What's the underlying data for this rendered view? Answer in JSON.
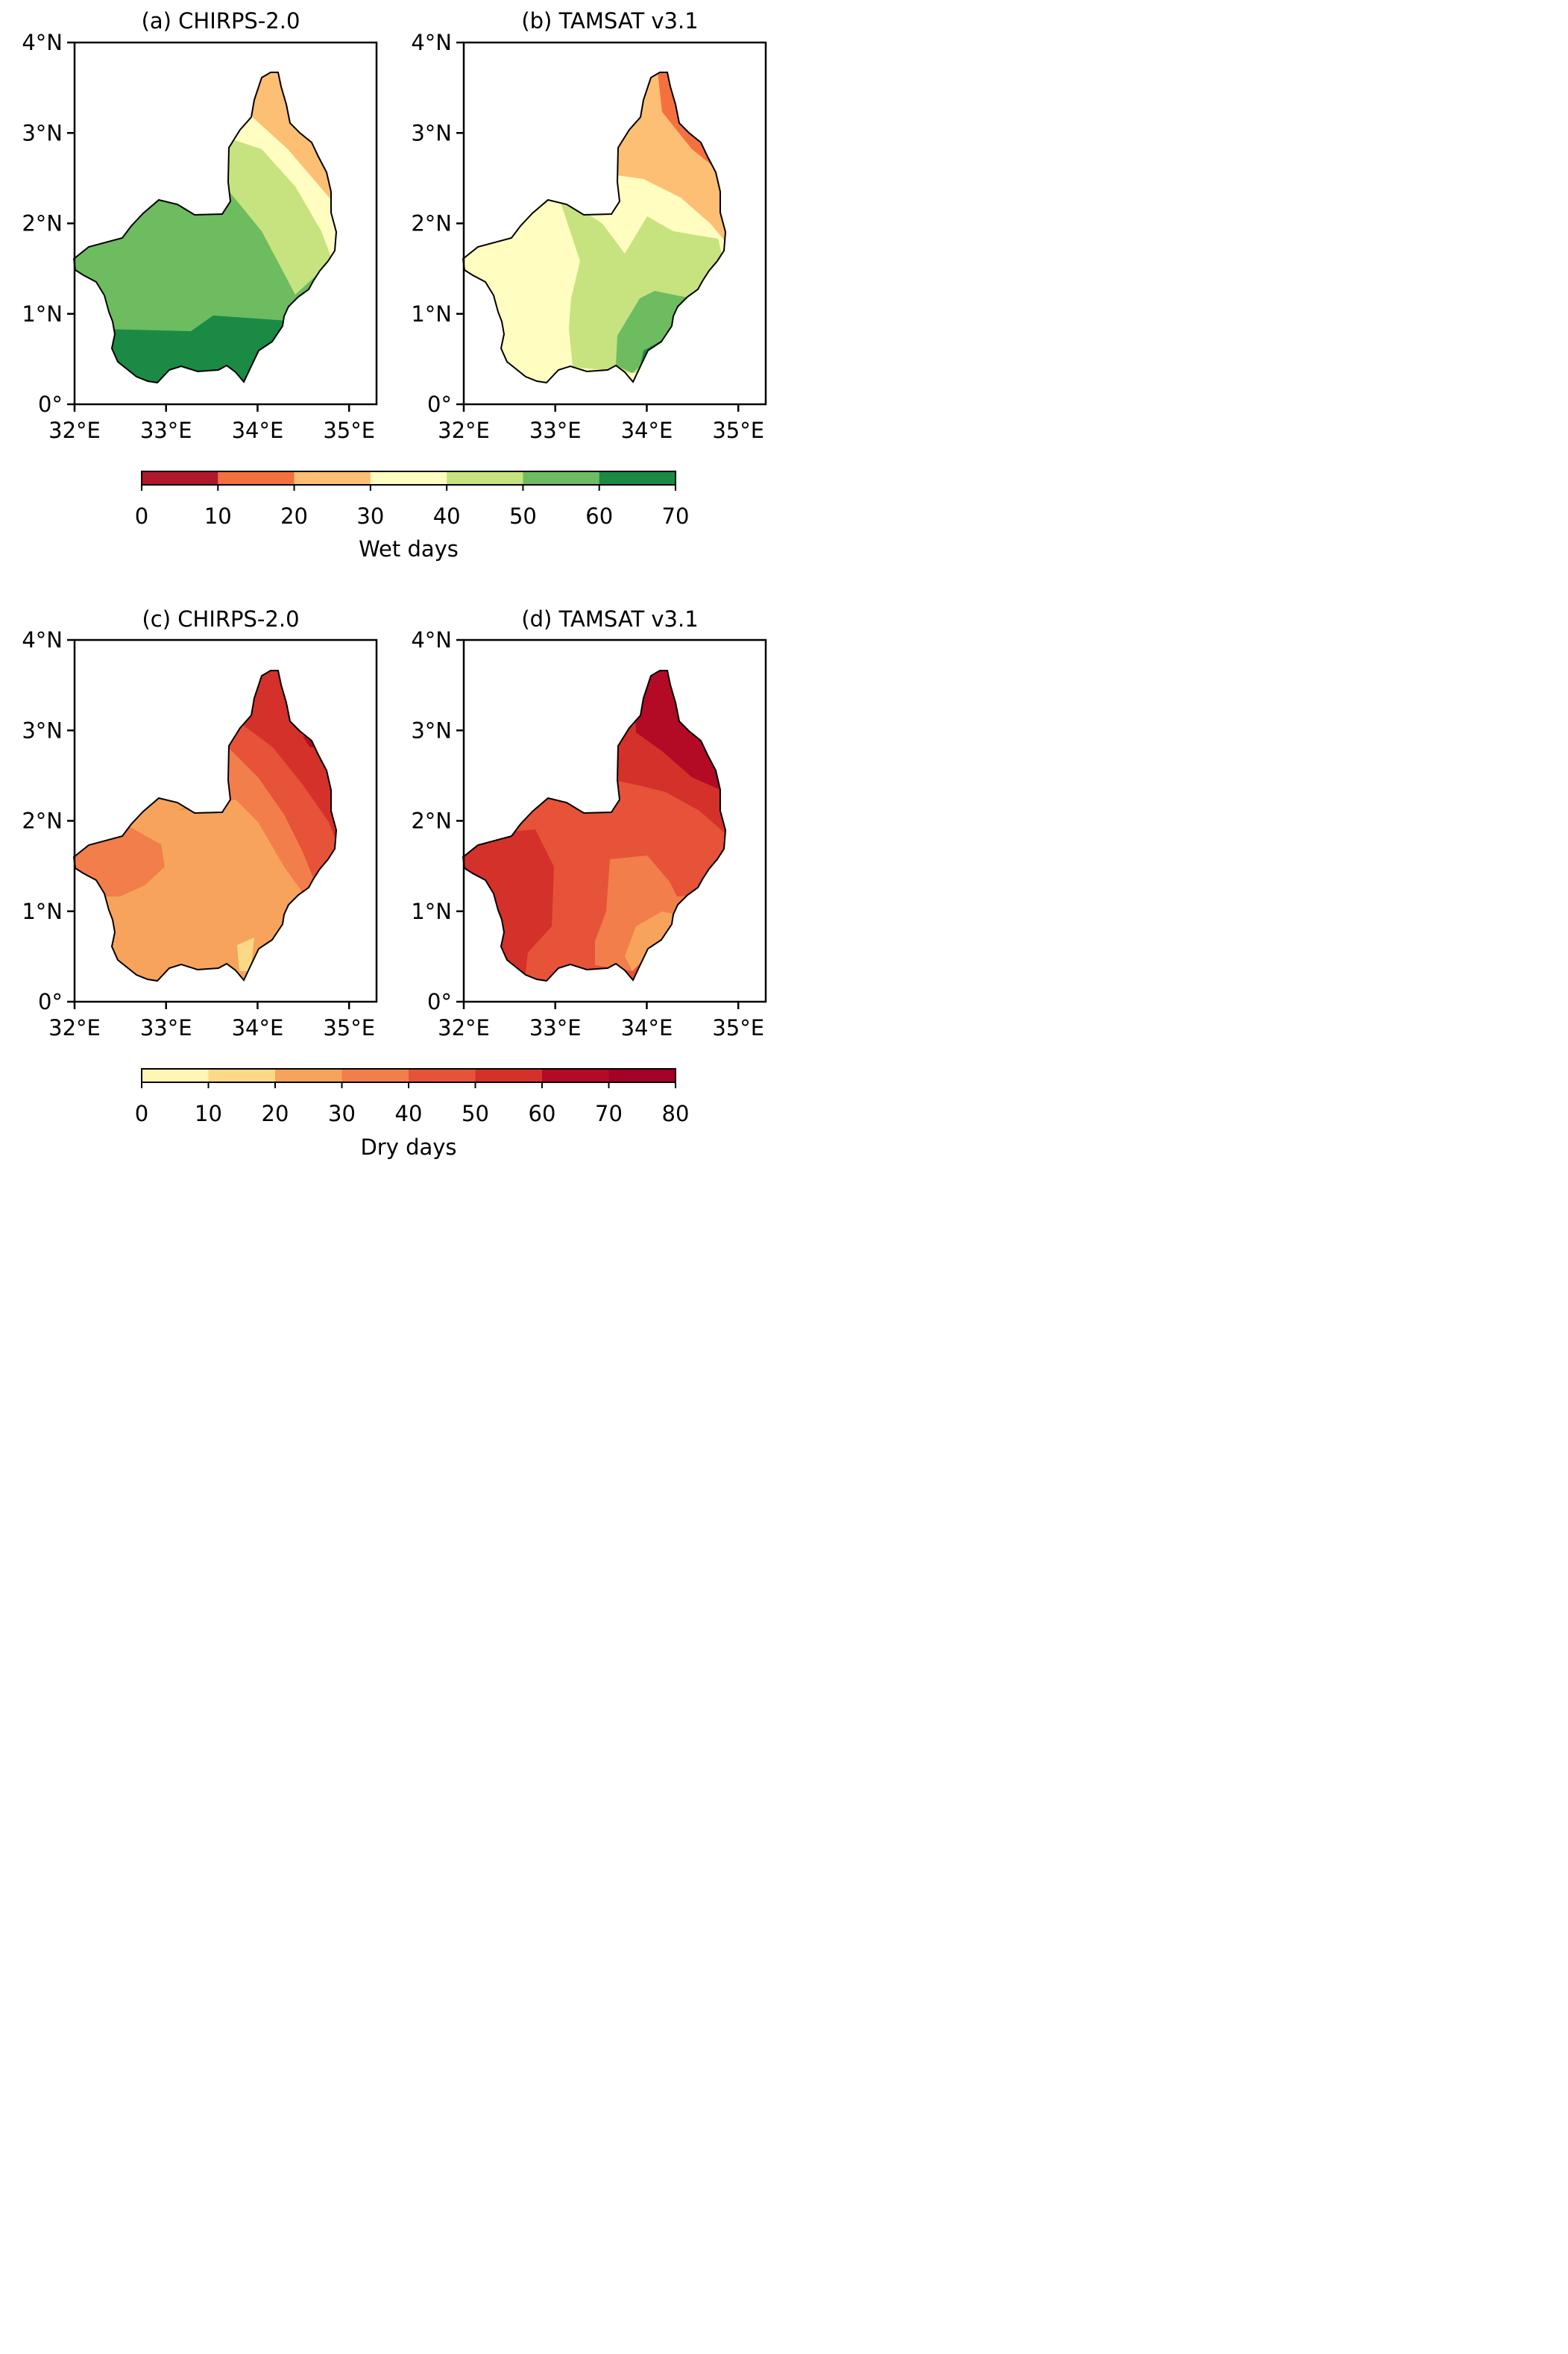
{
  "panels": [
    {
      "id": "a",
      "title": "(a) CHIRPS-2.0",
      "scale": "wet",
      "bands": [
        {
          "value": "10-20"
        },
        {
          "value": "20-30"
        },
        {
          "value": "30-40"
        },
        {
          "value": "40-50"
        },
        {
          "value": "50-60"
        },
        {
          "value": "60-70"
        }
      ]
    },
    {
      "id": "b",
      "title": "(b) TAMSAT v3.1",
      "scale": "wet",
      "bands": [
        {
          "value": "10-20"
        },
        {
          "value": "20-30"
        },
        {
          "value": "30-40"
        },
        {
          "value": "40-50"
        },
        {
          "value": "50-60"
        },
        {
          "value": "60-70"
        }
      ]
    },
    {
      "id": "c",
      "title": "(c) CHIRPS-2.0",
      "scale": "dry",
      "bands": [
        {
          "value": "20-30"
        },
        {
          "value": "30-40"
        },
        {
          "value": "40-50"
        },
        {
          "value": "50-60"
        },
        {
          "value": "60-70"
        },
        {
          "value": "70-80"
        }
      ]
    },
    {
      "id": "d",
      "title": "(d) TAMSAT v3.1",
      "scale": "dry",
      "bands": [
        {
          "value": "20-30"
        },
        {
          "value": "30-40"
        },
        {
          "value": "40-50"
        },
        {
          "value": "50-60"
        },
        {
          "value": "60-70"
        },
        {
          "value": "70-80"
        }
      ]
    }
  ],
  "axes": {
    "x_ticks": [
      "32°E",
      "33°E",
      "34°E",
      "35°E"
    ],
    "y_ticks": [
      "0°",
      "1°N",
      "2°N",
      "3°N",
      "4°N"
    ],
    "lon_range": [
      32,
      35.3
    ],
    "lat_range": [
      0,
      4
    ]
  },
  "colorbars": [
    {
      "id": "wet",
      "label": "Wet days",
      "ticks": [
        "0",
        "10",
        "20",
        "30",
        "40",
        "50",
        "60",
        "70"
      ],
      "colors": [
        "#b2182b",
        "#f4703f",
        "#fdbf74",
        "#fffdc0",
        "#c7e37f",
        "#6dbc60",
        "#1a8a45"
      ]
    },
    {
      "id": "dry",
      "label": "Dry days",
      "ticks": [
        "0",
        "10",
        "20",
        "30",
        "40",
        "50",
        "60",
        "70",
        "80"
      ],
      "colors": [
        "#fff6b5",
        "#fdd886",
        "#f8a35c",
        "#f27e4b",
        "#e65338",
        "#d33129",
        "#b30a25",
        "#a50026"
      ]
    }
  ],
  "colors": {
    "wet_ramp": [
      "#b2182b",
      "#f4703f",
      "#fdbf74",
      "#fffdc0",
      "#c7e37f",
      "#6dbc60",
      "#1a8a45"
    ],
    "dry_ramp": [
      "#fff6b5",
      "#fdd886",
      "#f8a35c",
      "#f27e4b",
      "#e65338",
      "#d33129",
      "#b30a25",
      "#a50026"
    ]
  }
}
